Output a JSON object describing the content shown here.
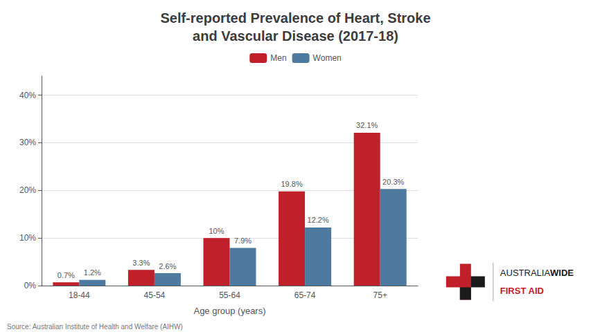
{
  "chart_data": {
    "type": "bar",
    "title": "Self-reported Prevalence of Heart, Stroke\nand Vascular Disease (2017-18)",
    "categories": [
      "18-44",
      "45-54",
      "55-64",
      "65-74",
      "75+"
    ],
    "series": [
      {
        "name": "Men",
        "color": "#c0202a",
        "values": [
          0.7,
          3.3,
          10.0,
          19.8,
          32.1
        ],
        "value_labels": [
          "0.7%",
          "3.3%",
          "10%",
          "19.8%",
          "32.1%"
        ]
      },
      {
        "name": "Women",
        "color": "#4d7a9e",
        "values": [
          1.2,
          2.6,
          7.9,
          12.2,
          20.3
        ],
        "value_labels": [
          "1.2%",
          "2.6%",
          "7.9%",
          "12.2%",
          "20.3%"
        ]
      }
    ],
    "xlabel": "Age group (years)",
    "ylim": [
      0,
      44
    ],
    "yticks": [
      {
        "value": 0,
        "label": "0%"
      },
      {
        "value": 10,
        "label": "10%"
      },
      {
        "value": 20,
        "label": "20%"
      },
      {
        "value": 30,
        "label": "30%"
      },
      {
        "value": 40,
        "label": "40%"
      }
    ],
    "grid": true,
    "legend": "top",
    "data_labels": true,
    "annotations": [
      "Source: Australian Institute of Health and Welfare (AIHW)",
      "AUSTRALIA",
      "WIDE",
      "FIRST AID"
    ]
  }
}
